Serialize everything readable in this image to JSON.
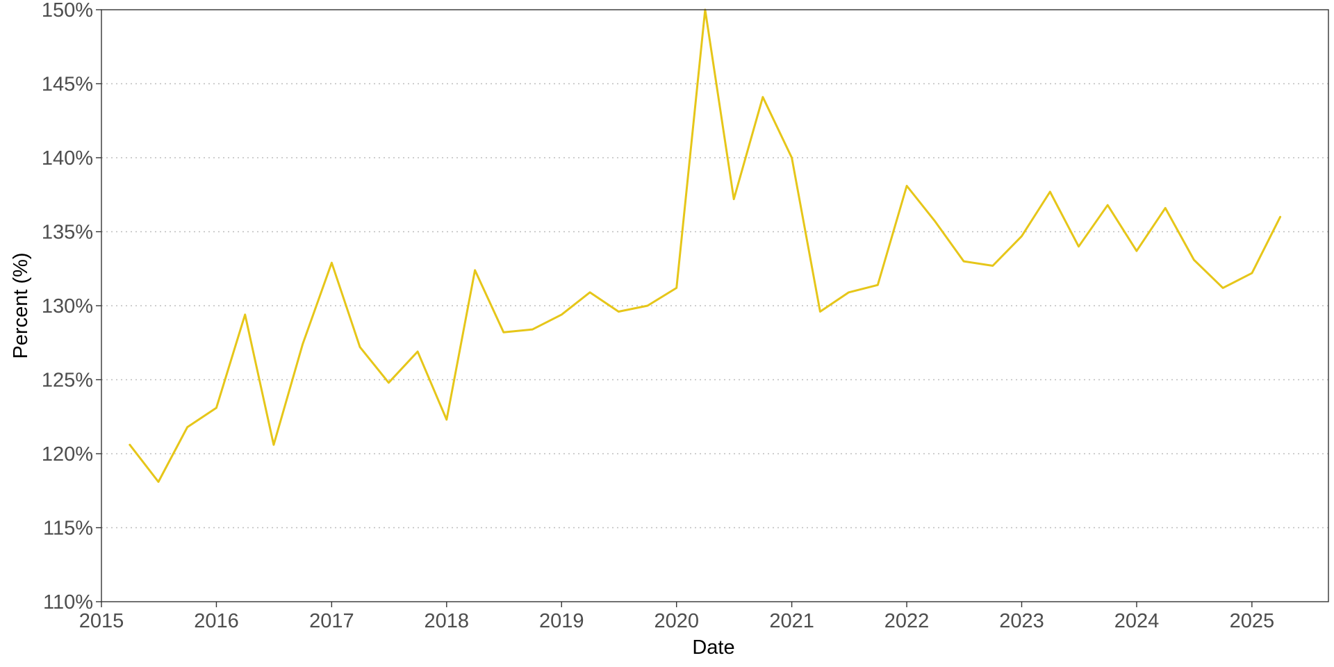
{
  "chart_data": {
    "type": "line",
    "title": "",
    "xlabel": "Date",
    "ylabel": "Percent (%)",
    "xlim": [
      "2015-01-01",
      "2025-09-01"
    ],
    "ylim": [
      110,
      150
    ],
    "x_ticks": [
      "2015",
      "2016",
      "2017",
      "2018",
      "2019",
      "2020",
      "2021",
      "2022",
      "2023",
      "2024",
      "2025"
    ],
    "y_ticks": [
      "110%",
      "115%",
      "120%",
      "125%",
      "130%",
      "135%",
      "140%",
      "145%",
      "150%"
    ],
    "grid": "horizontal dotted",
    "line_color": "#E6C619",
    "series": [
      {
        "x": [
          "2015-04-01",
          "2015-07-01",
          "2015-10-01",
          "2016-01-01",
          "2016-04-01",
          "2016-07-01",
          "2016-10-01",
          "2017-01-01",
          "2017-04-01",
          "2017-07-01",
          "2017-10-01",
          "2018-01-01",
          "2018-04-01",
          "2018-07-01",
          "2018-10-01",
          "2019-01-01",
          "2019-04-01",
          "2019-07-01",
          "2019-10-01",
          "2020-01-01",
          "2020-04-01",
          "2020-07-01",
          "2020-10-01",
          "2021-01-01",
          "2021-04-01",
          "2021-07-01",
          "2021-10-01",
          "2022-01-01",
          "2022-04-01",
          "2022-07-01",
          "2022-10-01",
          "2023-01-01",
          "2023-04-01",
          "2023-07-01",
          "2023-10-01",
          "2024-01-01",
          "2024-04-01",
          "2024-07-01",
          "2024-10-01",
          "2025-01-01",
          "2025-04-01"
        ],
        "values": [
          120.6,
          118.1,
          121.8,
          123.1,
          129.4,
          120.6,
          127.4,
          132.9,
          127.2,
          124.8,
          126.9,
          122.3,
          132.4,
          128.2,
          128.4,
          129.4,
          130.9,
          129.6,
          130.0,
          131.2,
          150.0,
          137.2,
          144.1,
          140.0,
          129.6,
          130.9,
          131.4,
          138.1,
          135.7,
          133.0,
          132.7,
          134.7,
          137.7,
          134.0,
          136.8,
          133.7,
          136.6,
          133.1,
          131.2,
          132.2,
          136.0
        ]
      }
    ]
  }
}
